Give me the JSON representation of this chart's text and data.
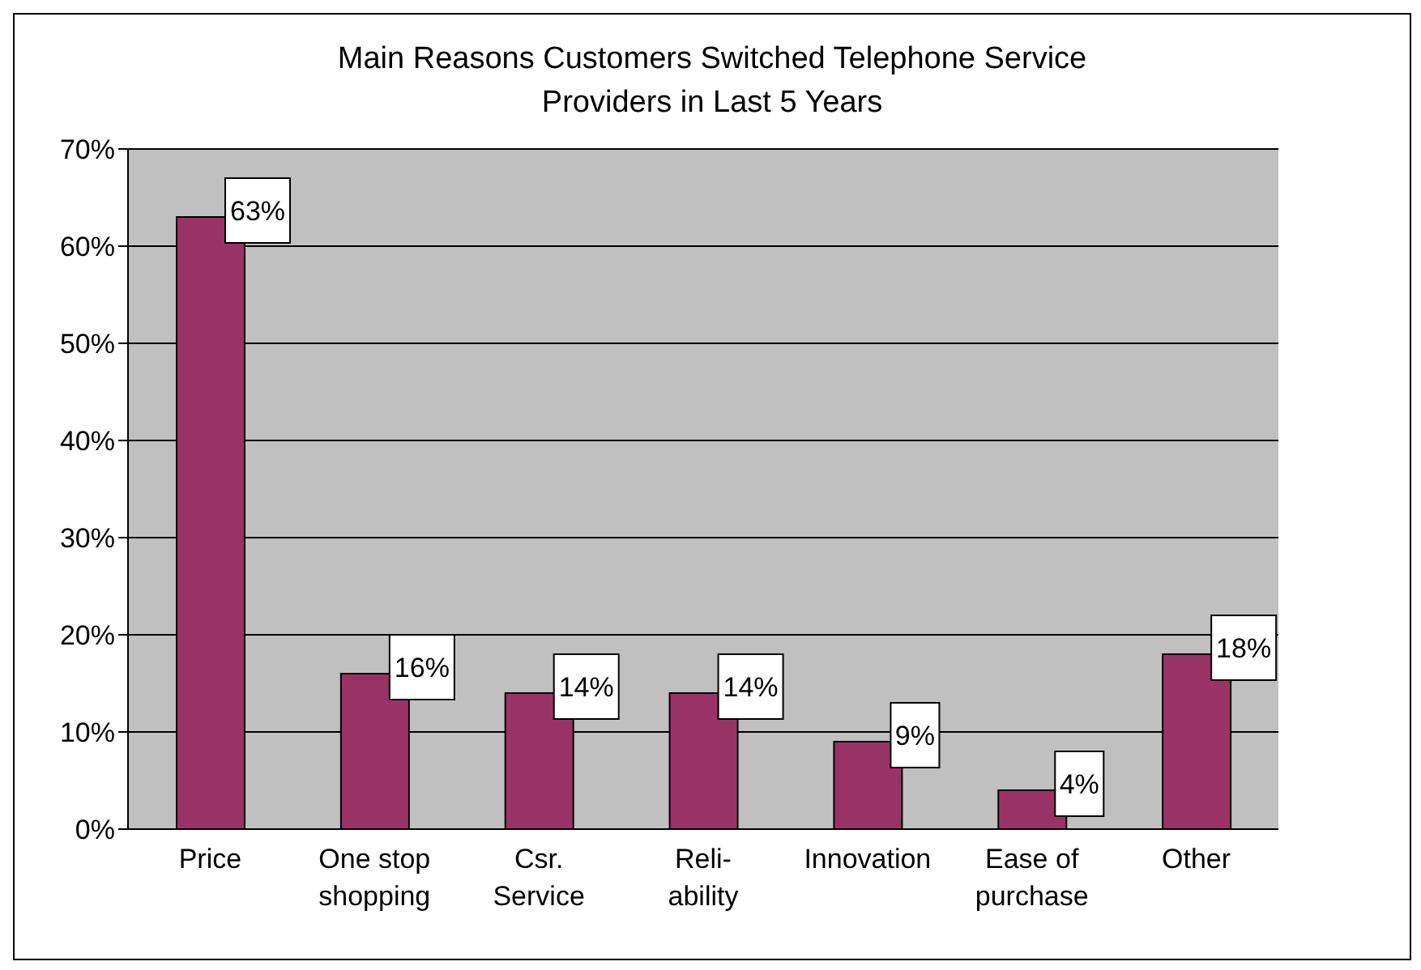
{
  "chart_data": {
    "type": "bar",
    "title": "Main Reasons Customers Switched Telephone Service\nProviders in Last 5 Years",
    "categories": [
      "Price",
      "One stop\nshopping",
      "Csr.\nService",
      "Reli-\nability",
      "Innovation",
      "Ease of\npurchase",
      "Other"
    ],
    "values": [
      63,
      16,
      14,
      14,
      9,
      4,
      18
    ],
    "value_labels": [
      "63%",
      "16%",
      "14%",
      "14%",
      "9%",
      "4%",
      "18%"
    ],
    "color": "#993366",
    "ylim": [
      0,
      70
    ],
    "yticks": [
      {
        "value": 0,
        "label": "0%"
      },
      {
        "value": 10,
        "label": "10%"
      },
      {
        "value": 20,
        "label": "20%"
      },
      {
        "value": 30,
        "label": "30%"
      },
      {
        "value": 40,
        "label": "40%"
      },
      {
        "value": 50,
        "label": "50%"
      },
      {
        "value": 60,
        "label": "60%"
      },
      {
        "value": 70,
        "label": "70%"
      }
    ],
    "grid": "y",
    "legend": false
  }
}
